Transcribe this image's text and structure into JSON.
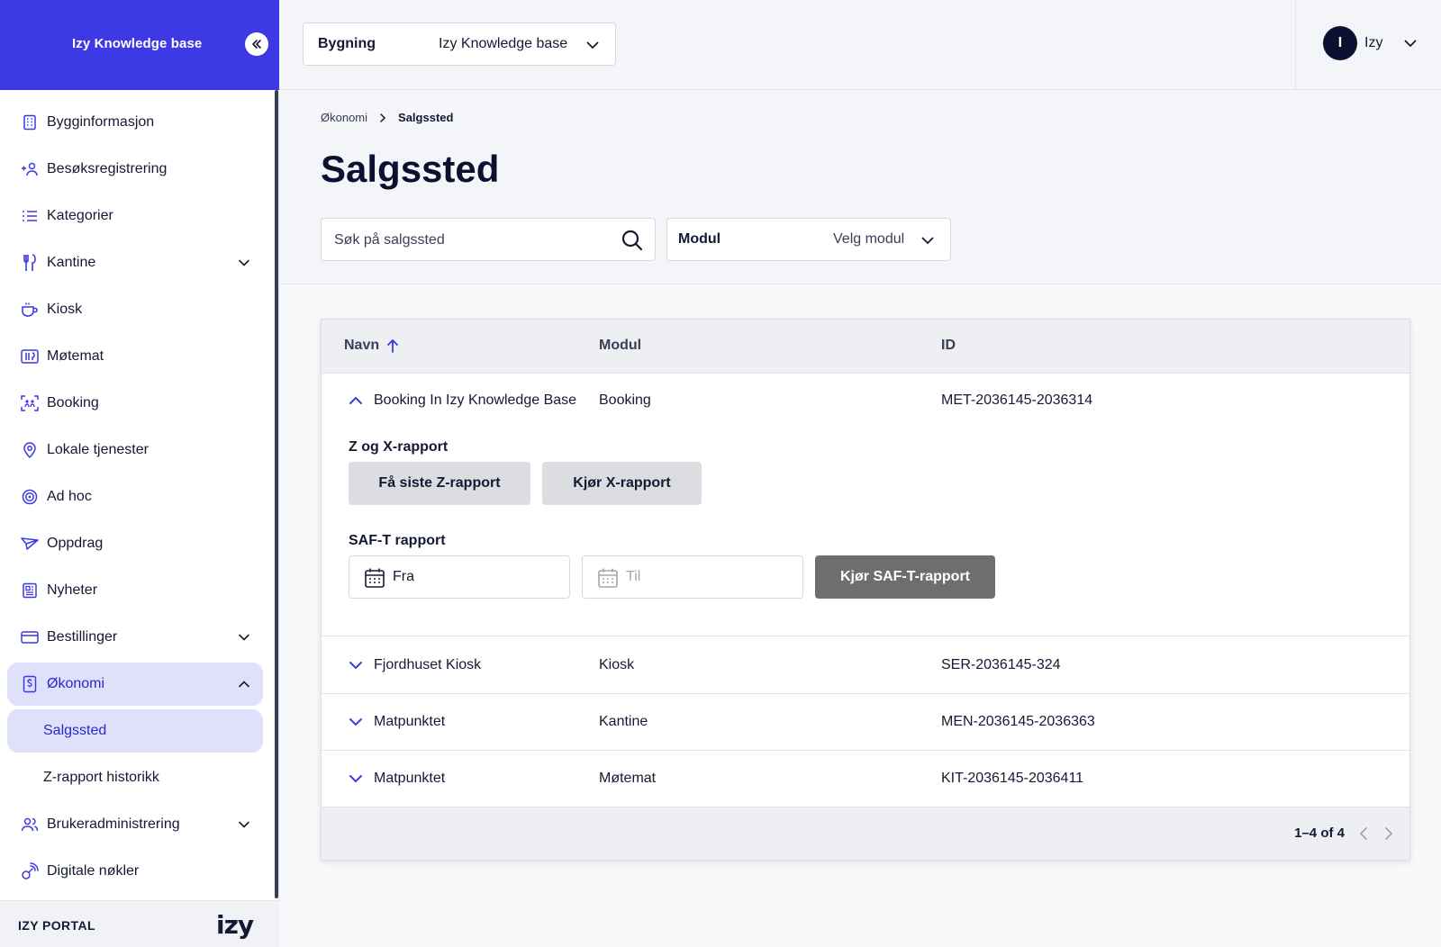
{
  "sidebar": {
    "brand_title": "Izy Knowledge base",
    "items": [
      {
        "label": "Bygginformasjon"
      },
      {
        "label": "Besøksregistrering"
      },
      {
        "label": "Kategorier"
      },
      {
        "label": "Kantine"
      },
      {
        "label": "Kiosk"
      },
      {
        "label": "Møtemat"
      },
      {
        "label": "Booking"
      },
      {
        "label": "Lokale tjenester"
      },
      {
        "label": "Ad hoc"
      },
      {
        "label": "Oppdrag"
      },
      {
        "label": "Nyheter"
      },
      {
        "label": "Bestillinger"
      },
      {
        "label": "Økonomi"
      },
      {
        "label": "Salgssted"
      },
      {
        "label": "Z-rapport historikk"
      },
      {
        "label": "Brukeradministrering"
      },
      {
        "label": "Digitale nøkler"
      }
    ],
    "footer_label": "IZY PORTAL",
    "logo_text": "izy"
  },
  "topbar": {
    "building_label": "Bygning",
    "building_value": "Izy Knowledge base",
    "user_initial": "I",
    "user_name": "Izy"
  },
  "breadcrumb": {
    "parent": "Økonomi",
    "current": "Salgssted"
  },
  "page_title": "Salgssted",
  "filters": {
    "search_placeholder": "Søk på salgssted",
    "modul_label": "Modul",
    "modul_value": "Velg modul"
  },
  "table": {
    "columns": {
      "name": "Navn",
      "module": "Modul",
      "id": "ID"
    },
    "rows": [
      {
        "name": "Booking In Izy Knowledge Base",
        "module": "Booking",
        "id": "MET-2036145-2036314"
      },
      {
        "name": "Fjordhuset Kiosk",
        "module": "Kiosk",
        "id": "SER-2036145-324"
      },
      {
        "name": "Matpunktet",
        "module": "Kantine",
        "id": "MEN-2036145-2036363"
      },
      {
        "name": "Matpunktet",
        "module": "Møtemat",
        "id": "KIT-2036145-2036411"
      }
    ],
    "expanded": {
      "zx_title": "Z og X-rapport",
      "z_button": "Få siste Z-rapport",
      "x_button": "Kjør X-rapport",
      "saft_title": "SAF-T rapport",
      "from_label": "Fra",
      "to_label": "Til",
      "saft_button": "Kjør SAF-T-rapport"
    },
    "pagination": "1–4 of 4"
  },
  "colors": {
    "brand": "#3d39e4",
    "accent": "#2a27c9",
    "active_bg": "#dfe1fb",
    "dark": "#0c1130"
  }
}
